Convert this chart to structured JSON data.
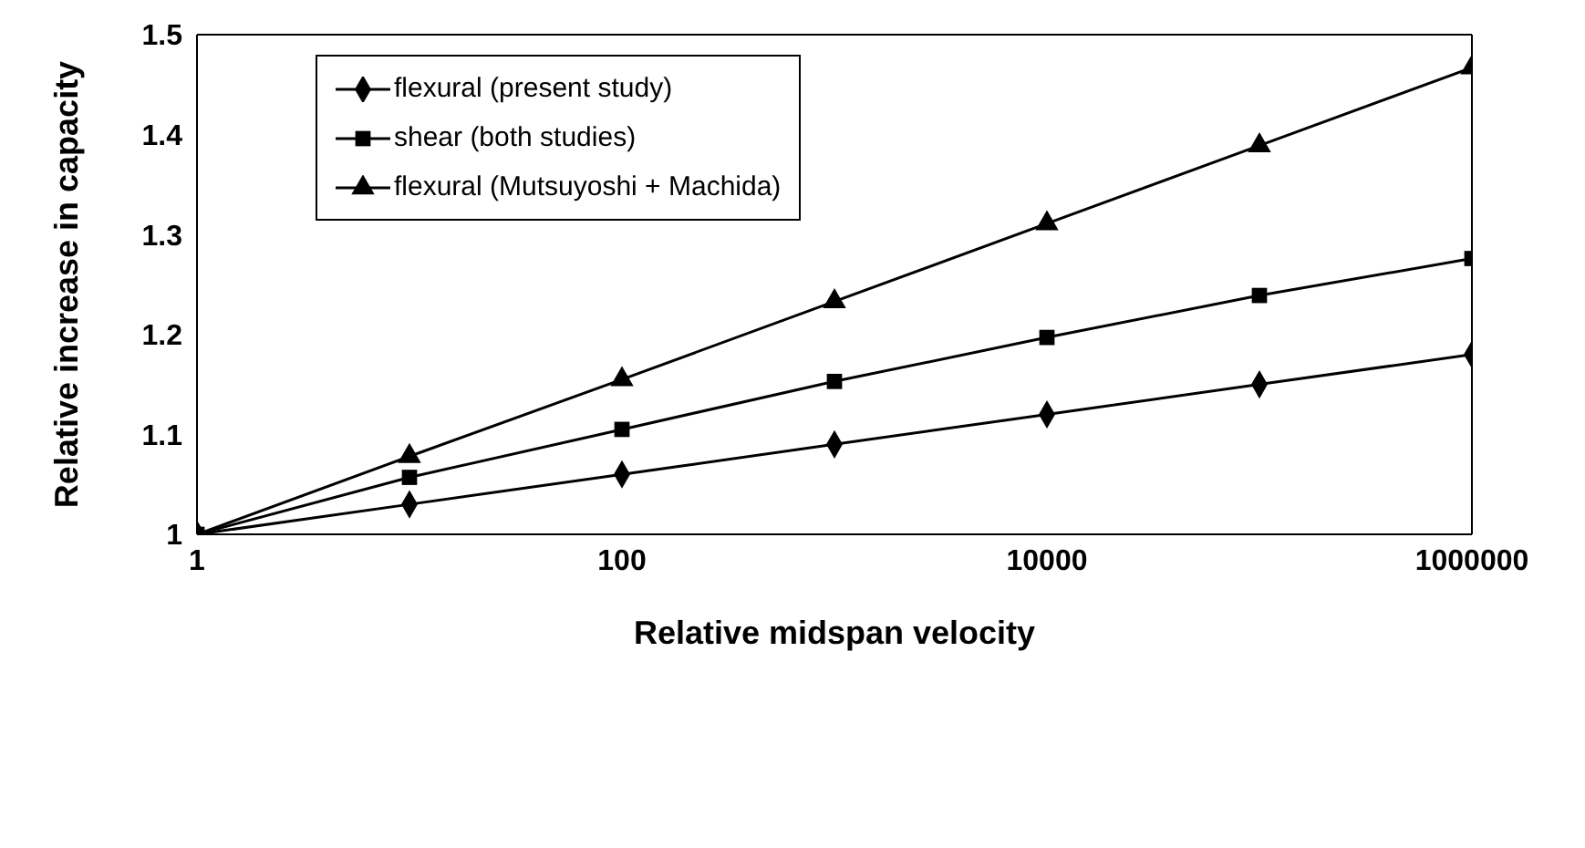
{
  "chart_data": {
    "type": "line",
    "xlabel": "Relative midspan velocity",
    "ylabel": "Relative increase in capacity",
    "log": "x",
    "xlim": [
      1,
      1000000
    ],
    "xticks": [
      1,
      100,
      10000,
      1000000
    ],
    "ylim": [
      1,
      1.5
    ],
    "yticks": [
      1,
      1.1,
      1.2,
      1.3,
      1.4,
      1.5
    ],
    "legend": "top left",
    "x": [
      1,
      10,
      100,
      1000,
      10000,
      100000,
      1000000
    ],
    "series": [
      {
        "name": "flexural (present study)",
        "color": "#000000",
        "marker": "diamond",
        "values": [
          1,
          1.03,
          1.06,
          1.09,
          1.12,
          1.15,
          1.18
        ]
      },
      {
        "name": "shear (both studies)",
        "color": "#000000",
        "marker": "square",
        "values": [
          1,
          1.057,
          1.105,
          1.153,
          1.197,
          1.239,
          1.276
        ]
      },
      {
        "name": "flexural (Mutsuyoshi + Machida)",
        "color": "#000000",
        "marker": "triangle",
        "values": [
          1,
          1.078,
          1.155,
          1.233,
          1.311,
          1.389,
          1.467
        ]
      }
    ]
  }
}
